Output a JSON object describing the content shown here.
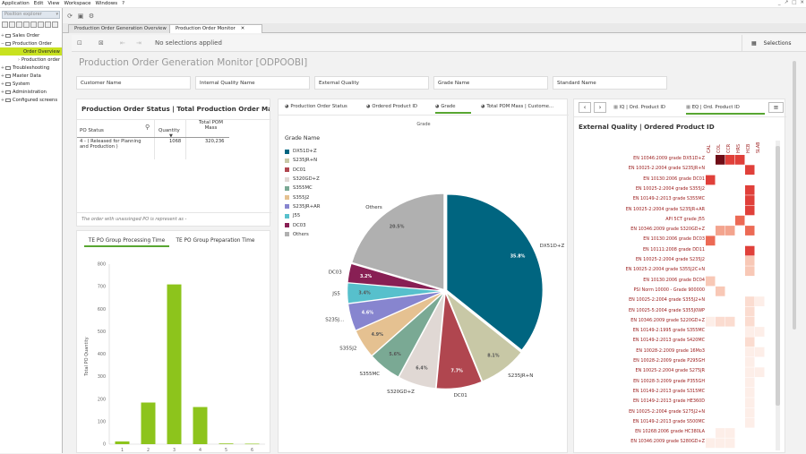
{
  "menu": {
    "items": [
      "Application",
      "Edit",
      "View",
      "Workspace",
      "Windows",
      "?"
    ],
    "window_controls": [
      "_",
      "↗",
      "□",
      "✕"
    ]
  },
  "left_panel": {
    "search_placeholder": "Position explorer",
    "tree": [
      {
        "label": "Sales Order",
        "level": 0,
        "expander": "+"
      },
      {
        "label": "Production Order",
        "level": 0,
        "expander": "−"
      },
      {
        "label": "Order Overview",
        "level": 1,
        "selected": true
      },
      {
        "label": "Production order",
        "level": 1
      },
      {
        "label": "Troubleshooting",
        "level": 0,
        "expander": "+"
      },
      {
        "label": "Master Data",
        "level": 0,
        "expander": "+"
      },
      {
        "label": "System",
        "level": 0,
        "expander": "+"
      },
      {
        "label": "Administration",
        "level": 0,
        "expander": "+"
      },
      {
        "label": "Configured screens",
        "level": 0,
        "expander": "+"
      }
    ]
  },
  "tabs": [
    {
      "label": "Production Order Generation Overview",
      "active": false
    },
    {
      "label": "Production Order Monitor",
      "active": true,
      "close": "✕"
    }
  ],
  "selection_bar": {
    "message": "No selections applied",
    "selections_label": "Selections"
  },
  "sheet": {
    "title": "Production Order Generation Monitor [ODPOOBI]"
  },
  "filters": [
    "Customer Name",
    "Internal Quality Name",
    "External Quality",
    "Grade Name",
    "Standard Name"
  ],
  "po_status": {
    "title": "Production Order Status | Total Production Order Materi...",
    "columns": [
      "PO Status",
      "Quantity",
      "Total POM\nMass"
    ],
    "row": {
      "status": "4 - ( Released for Planning\nand Production )",
      "quantity": "1068",
      "mass": "320,236"
    },
    "footnote": "The order with unassinged PO is represent as -"
  },
  "processing": {
    "tabs": [
      "TE PO Group Processing Time",
      "TE PO Group Preparation Time"
    ],
    "ylabel": "Total PO Quantity"
  },
  "grade_panel": {
    "tabs": [
      "Production Order Status",
      "Ordered Product ID",
      "Grade",
      "Total POM Mass | Custome..."
    ],
    "chart_title": "Grade",
    "legend_title": "Grade Name",
    "pie_labels_outside": [
      "DX51D+Z",
      "S235JR+N",
      "DC01",
      "S320GD+Z",
      "S355MC",
      "S355J2",
      "S235J...",
      "JS5",
      "DC03",
      "Others"
    ]
  },
  "external_panel": {
    "tabs": [
      "IQ | Ord. Product ID",
      "EQ | Ord. Product ID"
    ],
    "title": "External Quality | Ordered Product ID",
    "columns": [
      "CAL",
      "COL",
      "CCR",
      "HRS",
      "HCB",
      "SLAB"
    ],
    "rows": [
      "EN 10346:2009 grade DX51D+Z",
      "EN 10025-2:2004 grade S235JR+N",
      "EN 10130:2006 grade DC01",
      "EN 10025-2:2004 grade S355J2",
      "EN 10149-2:2013 grade S355MC",
      "EN 10025-2:2004 grade S235JR+AR",
      "API 5CT grade J55",
      "EN 10346:2009 grade S320GD+Z",
      "EN 10130:2006 grade DC03",
      "EN 10111:2008 grade DD11",
      "EN 10025-2:2004 grade S235J2",
      "EN 10025-2:2004 grade S355J2C+N",
      "EN 10130:2006 grade DC04",
      "PSI Norm 10000 - Grade 900000",
      "EN 10025-2:2004 grade S355J2+N",
      "EN 10025-5:2004 grade S355J0WP",
      "EN 10346:2009 grade S220GD+Z",
      "EN 10149-2:1995 grade S355MC",
      "EN 10149-2:2013 grade S420MC",
      "EN 10028-2:2009 grade 16Mo3",
      "EN 10028-2:2009 grade P295GH",
      "EN 10025-2:2004 grade S275JR",
      "EN 10028-3:2009 grade P355GH",
      "EN 10149-2:2013 grade S315MC",
      "EN 10149-2:2013 grade HE360D",
      "EN 10025-2:2004 grade S275J2+N",
      "EN 10149-2:2013 grade S500MC",
      "EN 10268:2006 grade HC380LA",
      "EN 10346:2009 grade S280GD+Z"
    ],
    "cells": [
      [
        0,
        1.0,
        0.9,
        0.8,
        0,
        0
      ],
      [
        0,
        0,
        0,
        0,
        0.85,
        0
      ],
      [
        0.85,
        0,
        0,
        0,
        0,
        0
      ],
      [
        0,
        0,
        0,
        0,
        0.85,
        0
      ],
      [
        0,
        0,
        0,
        0,
        0.85,
        0
      ],
      [
        0,
        0,
        0,
        0,
        0.85,
        0
      ],
      [
        0,
        0,
        0,
        0.75,
        0,
        0
      ],
      [
        0,
        0.6,
        0.45,
        0,
        0.7,
        0
      ],
      [
        0.75,
        0,
        0,
        0,
        0,
        0
      ],
      [
        0,
        0,
        0,
        0,
        0.8,
        0
      ],
      [
        0,
        0,
        0,
        0,
        0.3,
        0
      ],
      [
        0,
        0,
        0,
        0,
        0.25,
        0
      ],
      [
        0.3,
        0,
        0,
        0,
        0,
        0
      ],
      [
        0,
        0.2,
        0,
        0,
        0,
        0
      ],
      [
        0,
        0,
        0,
        0,
        0.1,
        0.08
      ],
      [
        0,
        0,
        0,
        0,
        0.12,
        0
      ],
      [
        0.08,
        0.12,
        0.12,
        0,
        0.15,
        0
      ],
      [
        0,
        0,
        0,
        0,
        0.05,
        0.04
      ],
      [
        0,
        0,
        0,
        0,
        0.1,
        0
      ],
      [
        0,
        0,
        0,
        0,
        0.06,
        0.05
      ],
      [
        0,
        0,
        0,
        0,
        0.06,
        0
      ],
      [
        0,
        0,
        0,
        0,
        0.08,
        0.05
      ],
      [
        0,
        0,
        0,
        0,
        0.05,
        0
      ],
      [
        0,
        0,
        0,
        0,
        0.06,
        0
      ],
      [
        0,
        0,
        0,
        0,
        0.05,
        0
      ],
      [
        0,
        0,
        0,
        0,
        0.06,
        0
      ],
      [
        0,
        0,
        0,
        0,
        0.08,
        0
      ],
      [
        0,
        0.06,
        0.06,
        0,
        0,
        0
      ],
      [
        0.05,
        0.05,
        0.05,
        0,
        0,
        0
      ]
    ]
  },
  "chart_data": [
    {
      "type": "bar",
      "title": "",
      "xlabel": "",
      "ylabel": "Total PO Quantity",
      "categories": [
        "1",
        "2",
        "3",
        "4",
        "5",
        "6"
      ],
      "values": [
        12,
        185,
        710,
        165,
        3,
        2
      ],
      "ylim": [
        0,
        800
      ],
      "yticks": [
        "0",
        "100",
        "200",
        "300",
        "400",
        "500",
        "600",
        "700",
        "800"
      ],
      "color": "#8dc41c",
      "grid": false
    },
    {
      "type": "pie",
      "title": "Grade",
      "legend_title": "Grade Name",
      "legend_position": "left",
      "slices": [
        {
          "name": "DX51D+Z",
          "pct": 35.8,
          "label": "35.8%",
          "color": "#006580"
        },
        {
          "name": "S235JR+N",
          "pct": 8.1,
          "label": "8.1%",
          "color": "#c8c8a6"
        },
        {
          "name": "DC01",
          "pct": 7.7,
          "label": "7.7%",
          "color": "#b0464f"
        },
        {
          "name": "S320GD+Z",
          "pct": 6.4,
          "label": "6.4%",
          "color": "#e0d8d4"
        },
        {
          "name": "S355MC",
          "pct": 5.6,
          "label": "5.6%",
          "color": "#7aa994"
        },
        {
          "name": "S355J2",
          "pct": 4.9,
          "label": "4.9%",
          "color": "#e5c191"
        },
        {
          "name": "S235JR+AR",
          "pct": 4.6,
          "label": "4.6%",
          "color": "#8785cf"
        },
        {
          "name": "J55",
          "pct": 3.4,
          "label": "3.4%",
          "color": "#57c0cc"
        },
        {
          "name": "DC03",
          "pct": 3.2,
          "label": "3.2%",
          "color": "#881f54"
        },
        {
          "name": "Others",
          "pct": 20.5,
          "label": "20.5%",
          "color": "#b0b0b0"
        }
      ]
    }
  ]
}
